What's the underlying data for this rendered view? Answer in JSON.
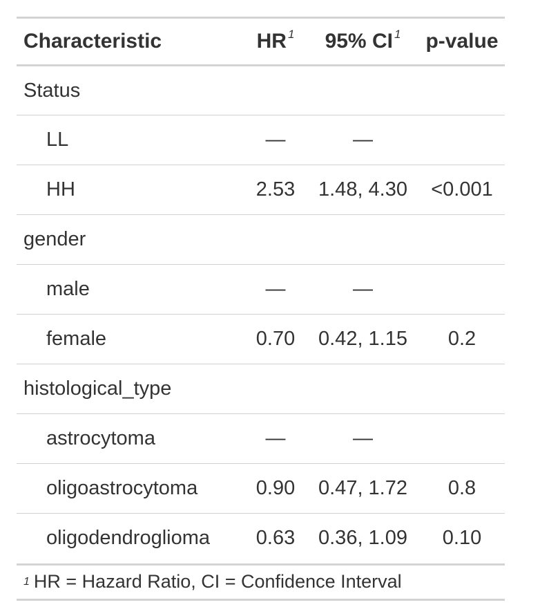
{
  "table": {
    "headers": {
      "characteristic": "Characteristic",
      "hr": "HR",
      "ci": "95% CI",
      "pvalue": "p-value",
      "footnote_mark": "1"
    },
    "groups": [
      {
        "label": "Status",
        "rows": [
          {
            "label": "LL",
            "hr": "—",
            "ci": "—",
            "p": ""
          },
          {
            "label": "HH",
            "hr": "2.53",
            "ci": "1.48, 4.30",
            "p": "<0.001"
          }
        ]
      },
      {
        "label": "gender",
        "rows": [
          {
            "label": "male",
            "hr": "—",
            "ci": "—",
            "p": ""
          },
          {
            "label": "female",
            "hr": "0.70",
            "ci": "0.42, 1.15",
            "p": "0.2"
          }
        ]
      },
      {
        "label": "histological_type",
        "rows": [
          {
            "label": "astrocytoma",
            "hr": "—",
            "ci": "—",
            "p": ""
          },
          {
            "label": "oligoastrocytoma",
            "hr": "0.90",
            "ci": "0.47, 1.72",
            "p": "0.8"
          },
          {
            "label": "oligodendroglioma",
            "hr": "0.63",
            "ci": "0.36, 1.09",
            "p": "0.10"
          }
        ]
      }
    ],
    "footnote": {
      "mark": "1",
      "text": "HR = Hazard Ratio, CI = Confidence Interval"
    }
  },
  "colors": {
    "text": "#333333",
    "rule": "#d3d3d3",
    "background": "#ffffff"
  }
}
